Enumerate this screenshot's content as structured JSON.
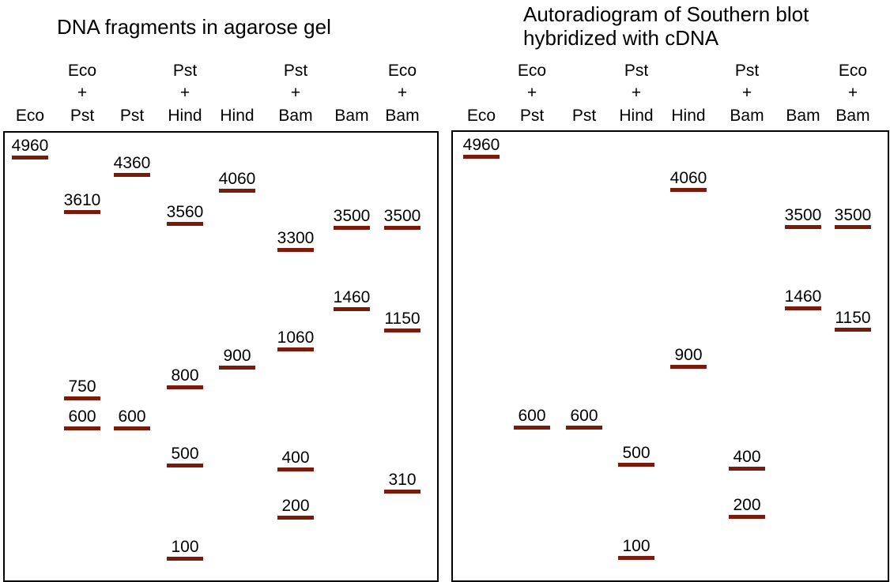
{
  "left": {
    "title": "DNA fragments in agarose gel",
    "lanes": [
      {
        "header": [
          "Eco"
        ],
        "bands": [
          4960
        ]
      },
      {
        "header": [
          "Eco",
          "+",
          "Pst"
        ],
        "bands": [
          3610,
          750,
          600
        ]
      },
      {
        "header": [
          "Pst"
        ],
        "bands": [
          4360,
          600
        ]
      },
      {
        "header": [
          "Pst",
          "+",
          "Hind"
        ],
        "bands": [
          3560,
          800,
          500,
          100
        ]
      },
      {
        "header": [
          "Hind"
        ],
        "bands": [
          4060,
          900
        ]
      },
      {
        "header": [
          "Pst",
          "+",
          "Bam"
        ],
        "bands": [
          3300,
          1060,
          400,
          200
        ]
      },
      {
        "header": [
          "Bam"
        ],
        "bands": [
          3500,
          1460
        ]
      },
      {
        "header": [
          "Eco",
          "+",
          "Bam"
        ],
        "bands": [
          3500,
          1150,
          310
        ]
      }
    ]
  },
  "right": {
    "title": "Autoradiogram of Southern blot\nhybridized with cDNA",
    "lanes": [
      {
        "header": [
          "Eco"
        ],
        "bands": [
          4960
        ]
      },
      {
        "header": [
          "Eco",
          "+",
          "Pst"
        ],
        "bands": [
          600
        ]
      },
      {
        "header": [
          "Pst"
        ],
        "bands": [
          600
        ]
      },
      {
        "header": [
          "Pst",
          "+",
          "Hind"
        ],
        "bands": [
          500,
          100
        ]
      },
      {
        "header": [
          "Hind"
        ],
        "bands": [
          4060,
          900
        ]
      },
      {
        "header": [
          "Pst",
          "+",
          "Bam"
        ],
        "bands": [
          400,
          200
        ]
      },
      {
        "header": [
          "Bam"
        ],
        "bands": [
          3500,
          1460
        ]
      },
      {
        "header": [
          "Eco",
          "+",
          "Bam"
        ],
        "bands": [
          3500,
          1150
        ]
      }
    ]
  },
  "band_color": "#7a1a0a"
}
